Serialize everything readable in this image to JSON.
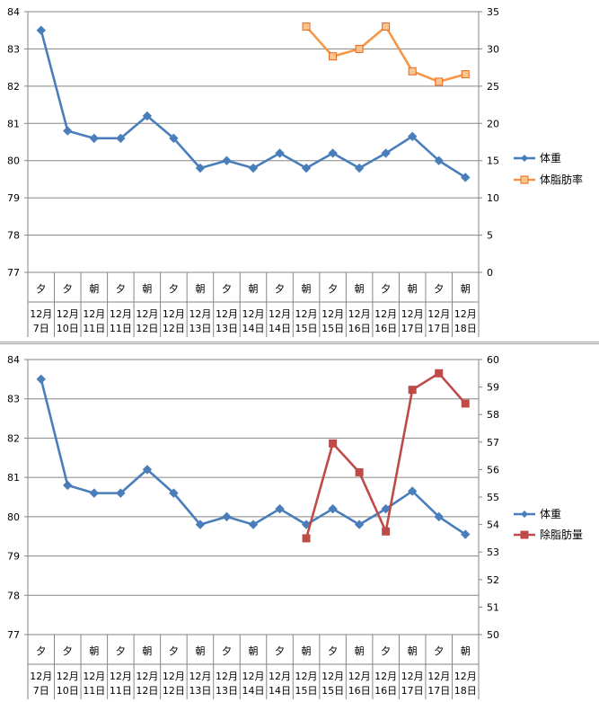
{
  "chart_data": [
    {
      "type": "line",
      "categories": [
        "12月7日",
        "12月10日",
        "12月11日",
        "12月11日",
        "12月12日",
        "12月12日",
        "12月13日",
        "12月13日",
        "12月14日",
        "12月14日",
        "12月15日",
        "12月15日",
        "12月16日",
        "12月16日",
        "12月17日",
        "12月17日",
        "12月18日"
      ],
      "period": [
        "夕",
        "夕",
        "朝",
        "夕",
        "朝",
        "夕",
        "朝",
        "夕",
        "朝",
        "夕",
        "朝",
        "夕",
        "朝",
        "夕",
        "朝",
        "夕",
        "朝"
      ],
      "ylim": [
        77,
        84
      ],
      "y_ticks": [
        77,
        78,
        79,
        80,
        81,
        82,
        83,
        84
      ],
      "y2lim": [
        0,
        35
      ],
      "y2_ticks": [
        0,
        5,
        10,
        15,
        20,
        25,
        30,
        35
      ],
      "grid": true,
      "legend_position": "right",
      "series": [
        {
          "name": "体重",
          "axis": "left",
          "color": "#4a7ebb",
          "marker": "diamond",
          "values": [
            83.5,
            80.8,
            80.6,
            80.6,
            81.2,
            80.6,
            79.8,
            80.0,
            79.8,
            80.2,
            79.8,
            80.2,
            79.8,
            80.2,
            80.65,
            80.0,
            79.55
          ]
        },
        {
          "name": "体脂肪率",
          "axis": "right",
          "color": "#f79646",
          "marker": "square",
          "values": [
            null,
            null,
            null,
            null,
            null,
            null,
            null,
            null,
            null,
            null,
            33.0,
            29.0,
            30.0,
            33.0,
            27.0,
            25.6,
            26.6
          ]
        }
      ]
    },
    {
      "type": "line",
      "categories": [
        "12月7日",
        "12月10日",
        "12月11日",
        "12月11日",
        "12月12日",
        "12月12日",
        "12月13日",
        "12月13日",
        "12月14日",
        "12月14日",
        "12月15日",
        "12月15日",
        "12月16日",
        "12月16日",
        "12月17日",
        "12月17日",
        "12月18日"
      ],
      "period": [
        "夕",
        "夕",
        "朝",
        "夕",
        "朝",
        "夕",
        "朝",
        "夕",
        "朝",
        "夕",
        "朝",
        "夕",
        "朝",
        "夕",
        "朝",
        "夕",
        "朝"
      ],
      "ylim": [
        77,
        84
      ],
      "y_ticks": [
        77,
        78,
        79,
        80,
        81,
        82,
        83,
        84
      ],
      "y2lim": [
        50,
        60
      ],
      "y2_ticks": [
        50,
        51,
        52,
        53,
        54,
        55,
        56,
        57,
        58,
        59,
        60
      ],
      "grid": true,
      "legend_position": "right",
      "series": [
        {
          "name": "体重",
          "axis": "left",
          "color": "#4a7ebb",
          "marker": "diamond",
          "values": [
            83.5,
            80.8,
            80.6,
            80.6,
            81.2,
            80.6,
            79.8,
            80.0,
            79.8,
            80.2,
            79.8,
            80.2,
            79.8,
            80.2,
            80.65,
            80.0,
            79.55
          ]
        },
        {
          "name": "除脂肪量",
          "axis": "right",
          "color": "#be4b48",
          "marker": "square",
          "values": [
            null,
            null,
            null,
            null,
            null,
            null,
            null,
            null,
            null,
            null,
            53.5,
            56.95,
            55.9,
            53.75,
            58.9,
            59.5,
            58.4
          ]
        }
      ]
    }
  ]
}
